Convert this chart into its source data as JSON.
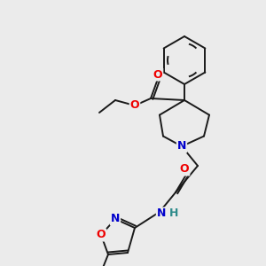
{
  "bg_color": "#ebebeb",
  "atom_colors": {
    "C": "#1a1a1a",
    "N": "#0000cc",
    "O": "#ee0000",
    "H": "#2e8b8b"
  },
  "fig_size": [
    3.0,
    3.0
  ],
  "dpi": 100
}
